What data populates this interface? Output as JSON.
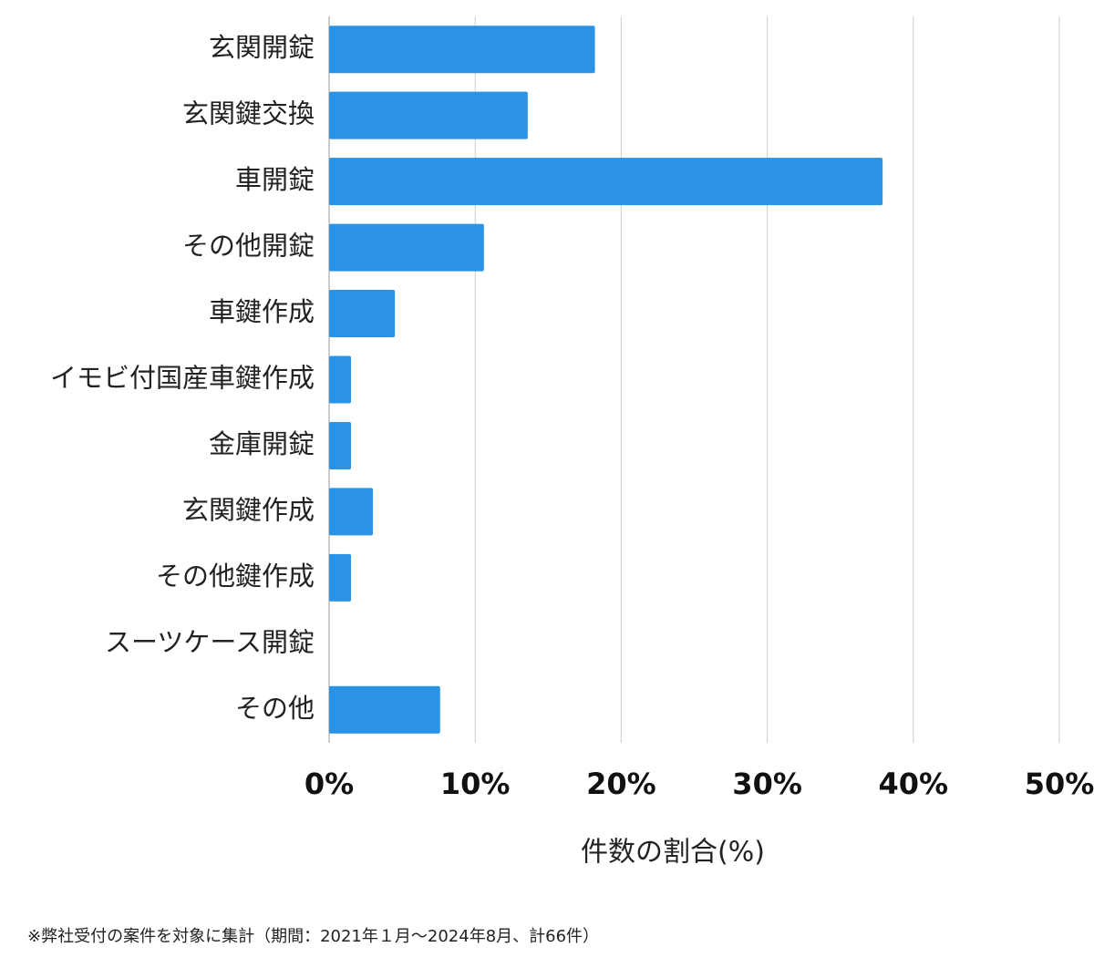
{
  "chart_data": {
    "type": "barh",
    "categories": [
      "玄関開錠",
      "玄関鍵交換",
      "車開錠",
      "その他開錠",
      "車鍵作成",
      "イモビ付国産車鍵作成",
      "金庫開錠",
      "玄関鍵作成",
      "その他鍵作成",
      "スーツケース開錠",
      "その他"
    ],
    "values": [
      18.2,
      13.6,
      37.9,
      10.6,
      4.5,
      1.5,
      1.5,
      3.0,
      1.5,
      0,
      7.6
    ],
    "color": "#2a93e6",
    "xlim": [
      0,
      50
    ],
    "xticks": [
      {
        "value": 0,
        "label": "0%"
      },
      {
        "value": 10,
        "label": "10%"
      },
      {
        "value": 20,
        "label": "20%"
      },
      {
        "value": 30,
        "label": "30%"
      },
      {
        "value": 40,
        "label": "40%"
      },
      {
        "value": 50,
        "label": "50%"
      }
    ],
    "x_label": "件数の割合(%)",
    "grid": true,
    "footnote": "※弊社受付の案件を対象に集計（期間：2021年１月〜2024年8月、計66件）"
  }
}
